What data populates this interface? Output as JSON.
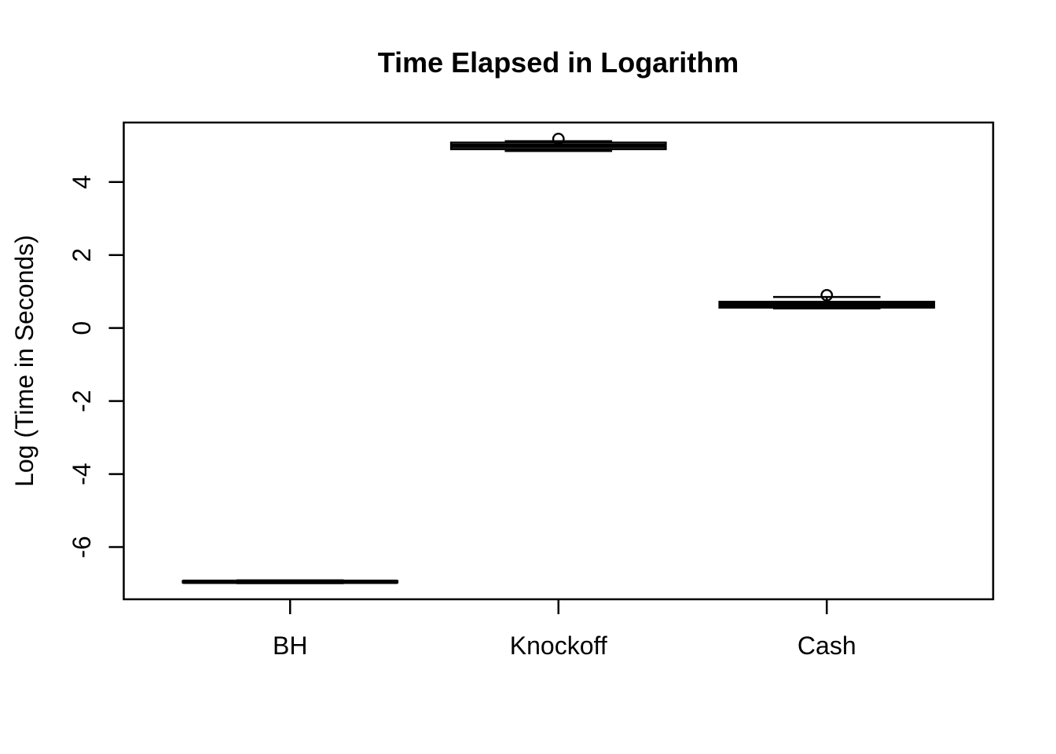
{
  "page": {
    "background_color": "#ffffff",
    "foreground_color": "#000000"
  },
  "chart_data": {
    "type": "boxplot",
    "title": "Time Elapsed in Logarithm",
    "xlabel": "",
    "ylabel": "Log (Time in Seconds)",
    "categories": [
      "BH",
      "Knockoff",
      "Cash"
    ],
    "yticks": [
      4,
      2,
      0,
      -2,
      -4,
      -6
    ],
    "ylim": [
      -7.43,
      5.63
    ],
    "grid": false,
    "legend": "none",
    "boxes": [
      {
        "category": "BH",
        "lower_whisker": -6.99,
        "q1": -6.97,
        "median": -6.95,
        "q3": -6.93,
        "upper_whisker": -6.91,
        "outliers": []
      },
      {
        "category": "Knockoff",
        "lower_whisker": 4.85,
        "q1": 4.9,
        "median": 4.99,
        "q3": 5.08,
        "upper_whisker": 5.12,
        "outliers": [
          5.18
        ]
      },
      {
        "category": "Cash",
        "lower_whisker": 0.54,
        "q1": 0.56,
        "median": 0.64,
        "q3": 0.72,
        "upper_whisker": 0.85,
        "outliers": [
          0.9
        ]
      }
    ]
  }
}
